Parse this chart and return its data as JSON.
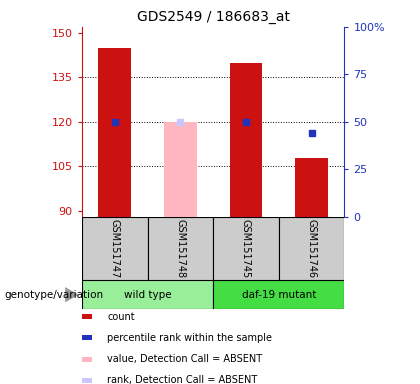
{
  "title": "GDS2549 / 186683_at",
  "samples": [
    "GSM151747",
    "GSM151748",
    "GSM151745",
    "GSM151746"
  ],
  "ylim_left": [
    88,
    152
  ],
  "yticks_left": [
    90,
    105,
    120,
    135,
    150
  ],
  "ylim_right": [
    0,
    100
  ],
  "yticks_right": [
    0,
    25,
    50,
    75,
    100
  ],
  "bar_width": 0.5,
  "count_color": "#CC1111",
  "percentile_color": "#2233BB",
  "absent_value_color": "#FFB6C1",
  "absent_rank_color": "#C8C8FF",
  "counts": [
    145,
    null,
    140,
    108
  ],
  "percentile_ranks": [
    50,
    null,
    50,
    44
  ],
  "absent_values": [
    null,
    120,
    null,
    null
  ],
  "absent_ranks": [
    null,
    50,
    null,
    null
  ],
  "bg_color": "#FFFFFF",
  "plot_bg": "#FFFFFF",
  "grid_color": "#000000",
  "label_color_left": "#CC1111",
  "label_color_right": "#2233BB",
  "wildtype_color": "#99EE99",
  "mutant_color": "#44DD44",
  "sample_bg_color": "#CCCCCC",
  "legend_items": [
    {
      "label": "count",
      "color": "#CC1111"
    },
    {
      "label": "percentile rank within the sample",
      "color": "#2233BB"
    },
    {
      "label": "value, Detection Call = ABSENT",
      "color": "#FFB6C1"
    },
    {
      "label": "rank, Detection Call = ABSENT",
      "color": "#C8C8FF"
    }
  ]
}
